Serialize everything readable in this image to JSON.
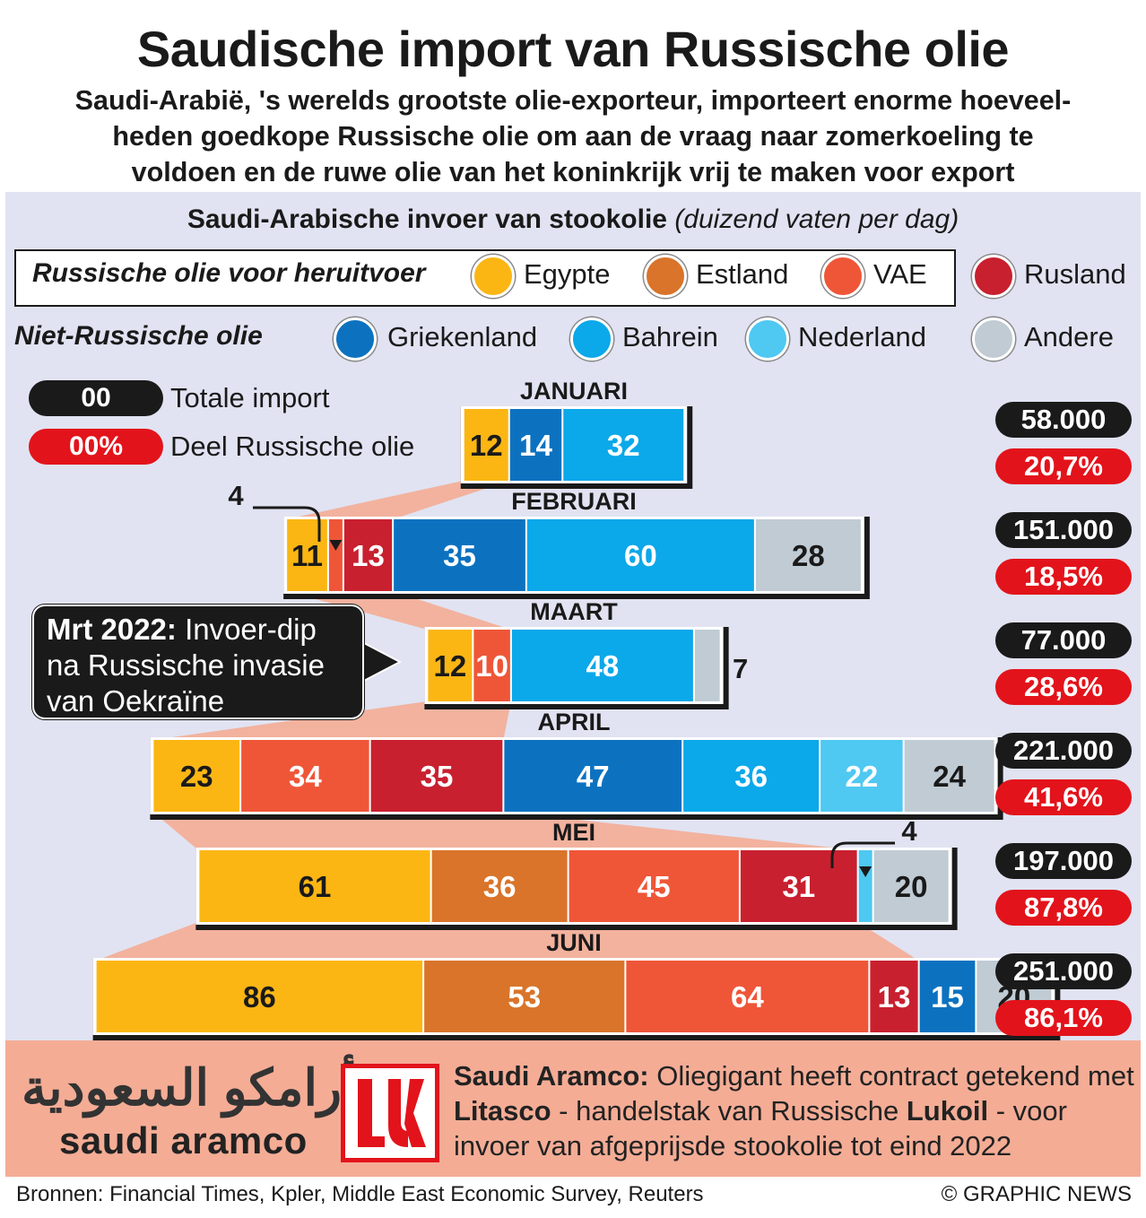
{
  "title": "Saudische import van Russische olie",
  "intro": "Saudi-Arabië, 's werelds grootste olie-exporteur, importeert enorme hoeveelheden goedkope Russische olie om aan de vraag naar zomerkoeling te voldoen en de ruwe olie van het koninkrijk vrij te maken voor export",
  "intro_lines": [
    "Saudi-Arabië, 's werelds grootste olie-exporteur, importeert enorme hoeveel-",
    "heden goedkope Russische olie om aan de vraag naar zomerkoeling te",
    "voldoen en de ruwe olie van het koninkrijk vrij te maken voor export"
  ],
  "chart_title": "Saudi-Arabische invoer van stookolie",
  "chart_unit": "(duizend vaten per dag)",
  "legend": {
    "russian_heading": "Russische olie voor heruitvoer",
    "non_russian_heading": "Niet-Russische olie",
    "total_label": "Totale import",
    "share_label": "Deel Russische olie",
    "total_example": "00",
    "share_example": "00%"
  },
  "colors": {
    "Egypte": "#fbb614",
    "Estland": "#d9742a",
    "VAE": "#ef5638",
    "Rusland": "#c8202f",
    "Griekenland": "#0c72c0",
    "Bahrein": "#0ba8ea",
    "Nederland": "#4fc8f2",
    "Andere": "#c0cbd4",
    "total_pill": "#1a1a1a",
    "share_pill": "#e3131b",
    "russian_band": "#f4ac95"
  },
  "callout": {
    "bold": "Mrt 2022:",
    "text": " Invoer-dip na Russische invasie van Oekraïne",
    "lines": [
      "Invoer-dip",
      "na Russische invasie",
      "van Oekraïne"
    ]
  },
  "chart_data": {
    "type": "bar",
    "stacked": true,
    "orientation": "horizontal",
    "title": "Saudi-Arabische invoer van stookolie",
    "unit": "duizend vaten per dag",
    "categories": [
      "JANUARI",
      "FEBRUARI",
      "MAART",
      "APRIL",
      "MEI",
      "JUNI"
    ],
    "series": [
      {
        "name": "Egypte",
        "group": "Russische olie voor heruitvoer",
        "values": [
          12,
          11,
          12,
          23,
          61,
          86
        ]
      },
      {
        "name": "Estland",
        "group": "Russische olie voor heruitvoer",
        "values": [
          0,
          0,
          0,
          0,
          36,
          53
        ]
      },
      {
        "name": "VAE",
        "group": "Russische olie voor heruitvoer",
        "values": [
          0,
          4,
          10,
          34,
          45,
          64
        ]
      },
      {
        "name": "Rusland",
        "group": "Russische olie voor heruitvoer",
        "values": [
          0,
          13,
          0,
          35,
          31,
          13
        ]
      },
      {
        "name": "Griekenland",
        "group": "Niet-Russische olie",
        "values": [
          14,
          35,
          0,
          47,
          0,
          15
        ]
      },
      {
        "name": "Bahrein",
        "group": "Niet-Russische olie",
        "values": [
          32,
          60,
          48,
          36,
          0,
          0
        ]
      },
      {
        "name": "Nederland",
        "group": "Niet-Russische olie",
        "values": [
          0,
          0,
          0,
          22,
          4,
          0
        ]
      },
      {
        "name": "Andere",
        "group": "Niet-Russische olie",
        "values": [
          0,
          28,
          7,
          24,
          20,
          20
        ]
      }
    ],
    "totals": [
      "58.000",
      "151.000",
      "77.000",
      "221.000",
      "197.000",
      "251.000"
    ],
    "russian_share": [
      "20,7%",
      "18,5%",
      "28,6%",
      "41,6%",
      "87,8%",
      "86,1%"
    ]
  },
  "footer": {
    "aramco_arabic": "أرامكو السعودية",
    "aramco_latin": "saudi aramco",
    "note_bold1": "Saudi Aramco:",
    "note_text1": " Oliegigant heeft contract getekend met ",
    "note_bold2": "Litasco",
    "note_text2": " - handelstak van Russische ",
    "note_bold3": "Lukoil",
    "note_text3": " - voor invoer van afgeprijsde stookolie tot eind 2022",
    "sources": "Bronnen: Financial Times, Kpler, Middle East Economic Survey, Reuters",
    "credit": "© GRAPHIC NEWS"
  }
}
